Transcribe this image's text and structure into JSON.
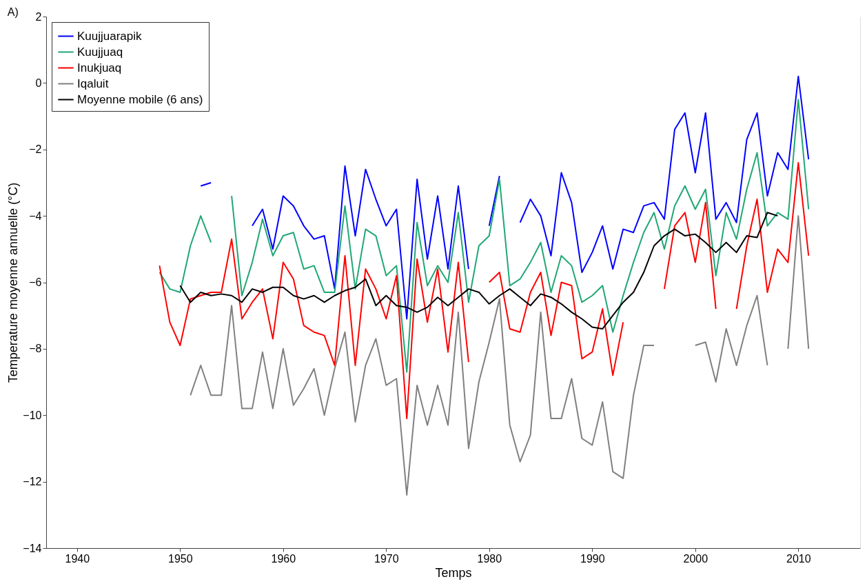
{
  "chart_data": {
    "type": "line",
    "xlabel": "Temps",
    "ylabel": "Temperature moyenne annuelle (°C)",
    "annotations": [
      "A)"
    ],
    "x": [
      1948,
      1949,
      1950,
      1951,
      1952,
      1953,
      1954,
      1955,
      1956,
      1957,
      1958,
      1959,
      1960,
      1961,
      1962,
      1963,
      1964,
      1965,
      1966,
      1967,
      1968,
      1969,
      1970,
      1971,
      1972,
      1973,
      1974,
      1975,
      1976,
      1977,
      1978,
      1979,
      1980,
      1981,
      1982,
      1983,
      1984,
      1985,
      1986,
      1987,
      1988,
      1989,
      1990,
      1991,
      1992,
      1993,
      1994,
      1995,
      1996,
      1997,
      1998,
      1999,
      2000,
      2001,
      2002,
      2003,
      2004,
      2005,
      2006,
      2007,
      2008,
      2009,
      2010,
      2011
    ],
    "xlim": [
      1937,
      2016
    ],
    "xticks": [
      1940,
      1950,
      1960,
      1970,
      1980,
      1990,
      2000,
      2010
    ],
    "ylim": [
      -14,
      2
    ],
    "yticks": [
      -14,
      -12,
      -10,
      -8,
      -6,
      -4,
      -2,
      0,
      2
    ],
    "grid": true,
    "legend": "top left",
    "line_style": "solid",
    "marker": "none",
    "series": [
      {
        "name": "Kuujjuarapik",
        "color": "#0000ff",
        "values": [
          null,
          null,
          null,
          null,
          -3.1,
          -3.0,
          null,
          null,
          null,
          -4.3,
          -3.8,
          -5.0,
          -3.4,
          -3.7,
          -4.3,
          -4.7,
          -4.6,
          -6.2,
          -2.5,
          -4.6,
          -2.6,
          -3.5,
          -4.3,
          -3.8,
          -7.1,
          -2.9,
          -5.3,
          -3.4,
          -5.6,
          -3.1,
          -5.6,
          null,
          -4.3,
          -2.8,
          null,
          -4.2,
          -3.5,
          -4.0,
          -5.2,
          -2.7,
          -3.6,
          -5.7,
          -5.1,
          -4.3,
          -5.6,
          -4.4,
          -4.5,
          -3.7,
          -3.6,
          -4.1,
          -1.4,
          -0.9,
          -2.7,
          -0.9,
          -4.1,
          -3.6,
          -4.2,
          -1.7,
          -0.9,
          -3.4,
          -2.1,
          -2.6,
          0.2,
          -2.3
        ]
      },
      {
        "name": "Kuujjuaq",
        "color": "#1fa774",
        "values": [
          -5.7,
          -6.2,
          -6.3,
          -4.9,
          -4.0,
          -4.8,
          null,
          -3.4,
          -6.4,
          -5.4,
          -4.1,
          -5.2,
          -4.6,
          -4.5,
          -5.6,
          -5.5,
          -6.3,
          -6.3,
          -3.7,
          -6.2,
          -4.4,
          -4.6,
          -5.8,
          -5.5,
          -8.7,
          -4.2,
          -6.1,
          -5.5,
          -6.0,
          -3.9,
          -6.6,
          -4.9,
          -4.6,
          -2.9,
          -6.1,
          -5.9,
          -5.4,
          -4.8,
          -6.3,
          -5.2,
          -5.5,
          -6.6,
          -6.4,
          -6.1,
          -7.5,
          -6.4,
          -5.4,
          -4.5,
          -3.9,
          -5.0,
          -3.7,
          -3.1,
          -3.8,
          -3.2,
          -5.8,
          -3.9,
          -4.7,
          -3.2,
          -2.1,
          -4.3,
          -3.9,
          -4.1,
          -0.5,
          -3.8
        ]
      },
      {
        "name": "Inukjuaq",
        "color": "#ff0000",
        "values": [
          -5.5,
          -7.2,
          -7.9,
          -6.5,
          -6.4,
          -6.3,
          -6.3,
          -4.7,
          -7.1,
          -6.6,
          -6.2,
          -7.7,
          -5.4,
          -5.9,
          -7.3,
          -7.5,
          -7.6,
          -8.5,
          -5.2,
          -8.5,
          -5.6,
          -6.2,
          -7.1,
          -5.8,
          -10.1,
          -5.3,
          -7.2,
          -5.6,
          -8.1,
          -5.4,
          -8.4,
          null,
          -6.0,
          -5.7,
          -7.4,
          -7.5,
          -6.3,
          -5.7,
          -7.6,
          -6.0,
          -6.1,
          -8.3,
          -8.1,
          -6.8,
          -8.8,
          -7.2,
          null,
          null,
          null,
          -6.2,
          -4.3,
          -3.9,
          -5.4,
          -3.6,
          -6.8,
          null,
          -6.8,
          -4.9,
          -3.5,
          -6.3,
          -5.0,
          -5.4,
          -2.4,
          -5.2
        ]
      },
      {
        "name": "Iqaluit",
        "color": "#808080",
        "values": [
          null,
          null,
          null,
          -9.4,
          -8.5,
          -9.4,
          -9.4,
          -6.7,
          -9.8,
          -9.8,
          -8.1,
          -9.8,
          -8.0,
          -9.7,
          -9.2,
          -8.6,
          -10.0,
          -8.6,
          -7.5,
          -10.2,
          -8.5,
          -7.7,
          -9.1,
          -8.9,
          -12.4,
          -9.1,
          -10.3,
          -9.1,
          -10.3,
          -6.9,
          -11.0,
          -9.0,
          -7.8,
          -6.5,
          -10.3,
          -11.4,
          -10.6,
          -6.9,
          -10.1,
          -10.1,
          -8.9,
          -10.7,
          -10.9,
          -9.6,
          -11.7,
          -11.9,
          -9.4,
          -7.9,
          -7.9,
          null,
          null,
          null,
          -7.9,
          -7.8,
          -9.0,
          -7.4,
          -8.5,
          -7.3,
          -6.4,
          -8.5,
          null,
          -8.0,
          -4.0,
          -8.0
        ]
      },
      {
        "name": "Moyenne mobile (6 ans)",
        "color": "#000000",
        "values": [
          null,
          null,
          -6.1,
          -6.6,
          -6.3,
          -6.4,
          -6.35,
          -6.4,
          -6.6,
          -6.2,
          -6.3,
          -6.15,
          -6.15,
          -6.4,
          -6.5,
          -6.4,
          -6.6,
          -6.4,
          -6.25,
          -6.15,
          -5.9,
          -6.7,
          -6.4,
          -6.7,
          -6.75,
          -6.9,
          -6.75,
          -6.45,
          -6.7,
          -6.45,
          -6.2,
          -6.3,
          -6.65,
          -6.4,
          -6.2,
          -6.45,
          -6.7,
          -6.35,
          -6.45,
          -6.65,
          -6.9,
          -7.1,
          -7.35,
          -7.4,
          -7.0,
          -6.6,
          -6.3,
          -5.7,
          -4.9,
          -4.6,
          -4.4,
          -4.6,
          -4.55,
          -4.8,
          -5.1,
          -4.8,
          -5.1,
          -4.6,
          -4.65,
          -3.9,
          -4.0,
          null,
          null,
          null
        ]
      }
    ]
  }
}
